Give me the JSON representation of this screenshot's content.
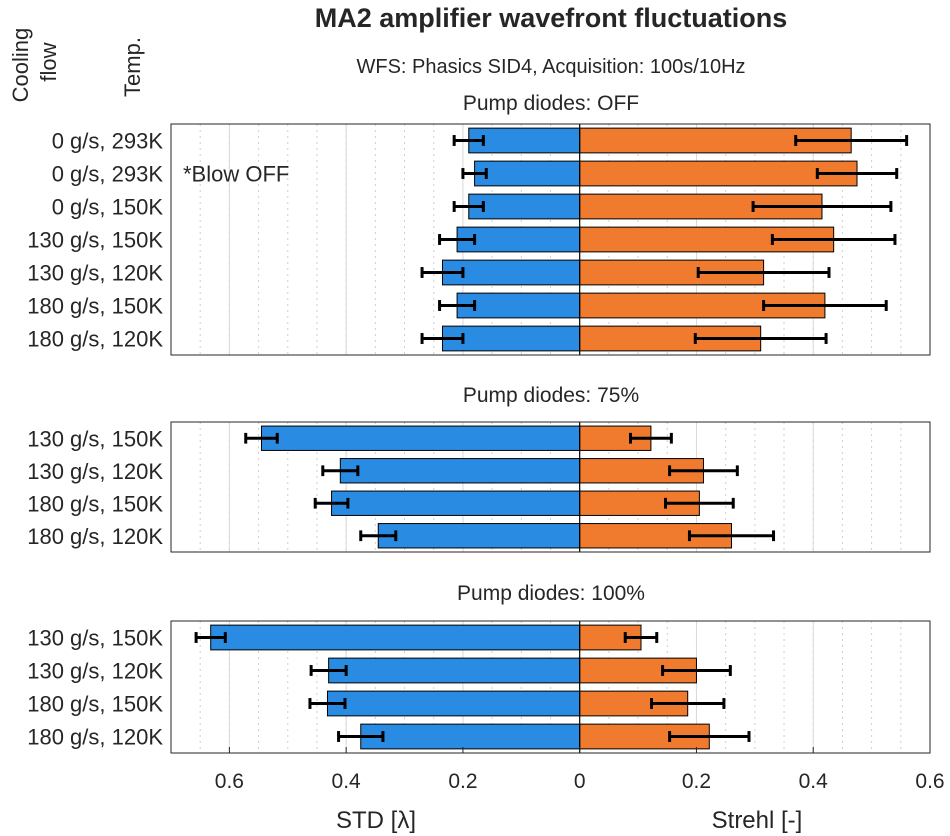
{
  "title": "MA2 amplifier wavefront fluctuations",
  "subtitle": "WFS: Phasics SID4, Acquisition: 100s/10Hz",
  "header_left": "Cooling flow",
  "header_right": "Temp.",
  "annotation": "*Blow OFF",
  "colors": {
    "std": "#2a8be2",
    "strehl": "#f07a2d",
    "errorbar": "#000000",
    "grid": "#d9d9d9"
  },
  "chart_data": {
    "type": "bar",
    "orientation": "horizontal",
    "xlabel_left": "STD [λ]",
    "xlabel_right": "Strehl [-]",
    "xlim": [
      -0.7,
      0.6
    ],
    "xticks": [
      -0.6,
      -0.4,
      -0.2,
      0,
      0.2,
      0.4,
      0.6
    ],
    "xtick_labels": [
      "0.6",
      "0.4",
      "0.2",
      "0",
      "0.2",
      "0.4",
      "0.6"
    ],
    "grid": true,
    "panels": [
      {
        "title": "Pump diodes: OFF",
        "categories": [
          "0 g/s, 293K",
          "0 g/s, 293K",
          "0 g/s, 150K",
          "130 g/s, 150K",
          "130 g/s, 120K",
          "180 g/s, 150K",
          "180 g/s, 120K"
        ],
        "std": [
          0.19,
          0.18,
          0.19,
          0.21,
          0.235,
          0.21,
          0.235
        ],
        "std_err": [
          0.025,
          0.02,
          0.025,
          0.03,
          0.035,
          0.03,
          0.035
        ],
        "strehl": [
          0.465,
          0.475,
          0.415,
          0.435,
          0.315,
          0.42,
          0.31
        ],
        "strehl_err": [
          0.095,
          0.068,
          0.118,
          0.105,
          0.112,
          0.105,
          0.112
        ],
        "annotations": [
          {
            "row": 1,
            "text": "*Blow OFF"
          }
        ]
      },
      {
        "title": "Pump diodes: 75%",
        "categories": [
          "130 g/s, 150K",
          "130 g/s, 120K",
          "180 g/s, 150K",
          "180 g/s, 120K"
        ],
        "std": [
          0.545,
          0.41,
          0.425,
          0.345
        ],
        "std_err": [
          0.027,
          0.03,
          0.028,
          0.03
        ],
        "strehl": [
          0.122,
          0.212,
          0.205,
          0.26
        ],
        "strehl_err": [
          0.035,
          0.058,
          0.058,
          0.072
        ]
      },
      {
        "title": "Pump diodes: 100%",
        "categories": [
          "130 g/s, 150K",
          "130 g/s, 120K",
          "180 g/s, 150K",
          "180 g/s, 120K"
        ],
        "std": [
          0.632,
          0.43,
          0.432,
          0.375
        ],
        "std_err": [
          0.025,
          0.03,
          0.03,
          0.038
        ],
        "strehl": [
          0.105,
          0.2,
          0.185,
          0.222
        ],
        "strehl_err": [
          0.027,
          0.058,
          0.062,
          0.068
        ]
      }
    ]
  }
}
